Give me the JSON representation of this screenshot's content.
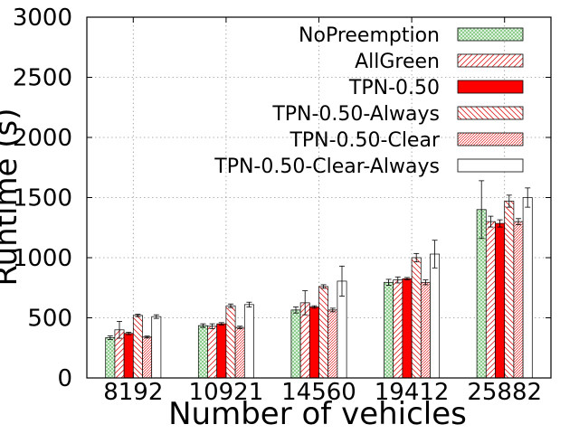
{
  "chart_data": {
    "type": "bar",
    "title": "",
    "xlabel": "Number of vehicles",
    "ylabel": "Runtime (s)",
    "ylim": [
      0,
      3000
    ],
    "yticks": [
      0,
      500,
      1000,
      1500,
      2000,
      2500,
      3000
    ],
    "grid": "dotted, both axes",
    "legend_position": "top-right",
    "categories": [
      "8192",
      "10921",
      "14560",
      "19412",
      "25882"
    ],
    "series": [
      {
        "name": "NoPreemption",
        "pattern": "crosshatch",
        "color": "#2ca02c",
        "values": [
          335,
          435,
          565,
          795,
          1400
        ],
        "err": [
          15,
          15,
          25,
          25,
          240
        ]
      },
      {
        "name": "AllGreen",
        "pattern": "diag-right",
        "color": "#e02020",
        "values": [
          400,
          430,
          625,
          815,
          1300
        ],
        "err": [
          70,
          20,
          100,
          25,
          45
        ]
      },
      {
        "name": "TPN-0.50",
        "pattern": "solid",
        "color": "#ff0000",
        "values": [
          370,
          450,
          590,
          825,
          1285
        ],
        "err": [
          10,
          10,
          10,
          10,
          30
        ]
      },
      {
        "name": "TPN-0.50-Always",
        "pattern": "diag-left",
        "color": "#e02020",
        "values": [
          520,
          600,
          760,
          1000,
          1470
        ],
        "err": [
          10,
          15,
          15,
          35,
          50
        ]
      },
      {
        "name": "TPN-0.50-Clear",
        "pattern": "diag-dense",
        "color": "#e02020",
        "values": [
          340,
          420,
          565,
          795,
          1300
        ],
        "err": [
          8,
          10,
          15,
          20,
          25
        ]
      },
      {
        "name": "TPN-0.50-Clear-Always",
        "pattern": "none",
        "color": "#000000",
        "values": [
          510,
          610,
          805,
          1030,
          1500
        ],
        "err": [
          15,
          20,
          125,
          115,
          80
        ]
      }
    ]
  }
}
